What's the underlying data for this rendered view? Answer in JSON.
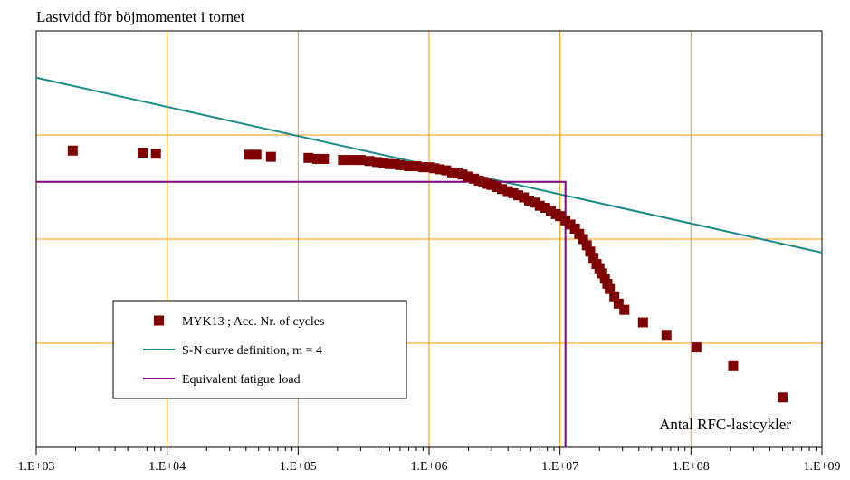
{
  "chart_data": {
    "type": "scatter",
    "title": "Lastvidd för böjmomentet i tornet",
    "xlabel": "Antal RFC-lastcykler",
    "ylabel": "",
    "x_scale": "log",
    "xlim": [
      1000,
      1000000000
    ],
    "ylim": [
      0,
      4
    ],
    "x_tick_values": [
      1000,
      10000,
      100000,
      1000000,
      10000000,
      100000000,
      1000000000
    ],
    "x_tick_labels": [
      "1.E+03",
      "1.E+04",
      "1.E+05",
      "1.E+06",
      "1.E+07",
      "1.E+08",
      "1.E+09"
    ],
    "y_gridlines": [
      1,
      2,
      3
    ],
    "grid": true,
    "legend_position": "bottom-left",
    "colors": {
      "markers": "#7f0000",
      "sn_curve": "#1a8a8a",
      "equivalent": "#800080",
      "grid": "#ff9900"
    },
    "series": [
      {
        "name": "MYK13 ; Acc. Nr. of cycles",
        "kind": "scatter",
        "x": [
          1900,
          6500,
          8200,
          42000,
          48000,
          62000,
          120000,
          140000,
          160000,
          220000,
          260000,
          300000,
          350000,
          400000,
          450000,
          500000,
          550000,
          600000,
          700000,
          800000,
          900000,
          1000000,
          1100000,
          1200000,
          1350000,
          1500000,
          1650000,
          1800000,
          2000000,
          2200000,
          2400000,
          2600000,
          2800000,
          3000000,
          3300000,
          3600000,
          4000000,
          4400000,
          4800000,
          5300000,
          5800000,
          6400000,
          7000000,
          7700000,
          8500000,
          9300000,
          10000000,
          11000000,
          12000000,
          13000000,
          14000000,
          15000000,
          16000000,
          17000000,
          18000000,
          19000000,
          20000000,
          21000000,
          22000000,
          23000000,
          24000000,
          26000000,
          28000000,
          31000000,
          43000000,
          65000000,
          110000000,
          210000000,
          500000000
        ],
        "y": [
          2.85,
          2.83,
          2.82,
          2.81,
          2.81,
          2.79,
          2.78,
          2.77,
          2.77,
          2.76,
          2.76,
          2.76,
          2.75,
          2.74,
          2.73,
          2.72,
          2.72,
          2.71,
          2.7,
          2.7,
          2.69,
          2.69,
          2.68,
          2.67,
          2.66,
          2.64,
          2.63,
          2.62,
          2.6,
          2.58,
          2.56,
          2.55,
          2.53,
          2.52,
          2.5,
          2.48,
          2.46,
          2.44,
          2.42,
          2.4,
          2.37,
          2.35,
          2.32,
          2.3,
          2.27,
          2.24,
          2.22,
          2.18,
          2.14,
          2.1,
          2.05,
          2.0,
          1.94,
          1.88,
          1.82,
          1.76,
          1.72,
          1.67,
          1.62,
          1.57,
          1.52,
          1.45,
          1.38,
          1.32,
          1.2,
          1.08,
          0.96,
          0.78,
          0.48
        ]
      },
      {
        "name": "S-N curve definition,  m =  4",
        "kind": "line",
        "x": [
          1000,
          1000000000
        ],
        "y": [
          3.55,
          1.87
        ]
      },
      {
        "name": "Equivalent fatigue load",
        "kind": "line",
        "x": [
          1000,
          11000000,
          11000000
        ],
        "y": [
          2.55,
          2.55,
          0
        ]
      }
    ]
  }
}
